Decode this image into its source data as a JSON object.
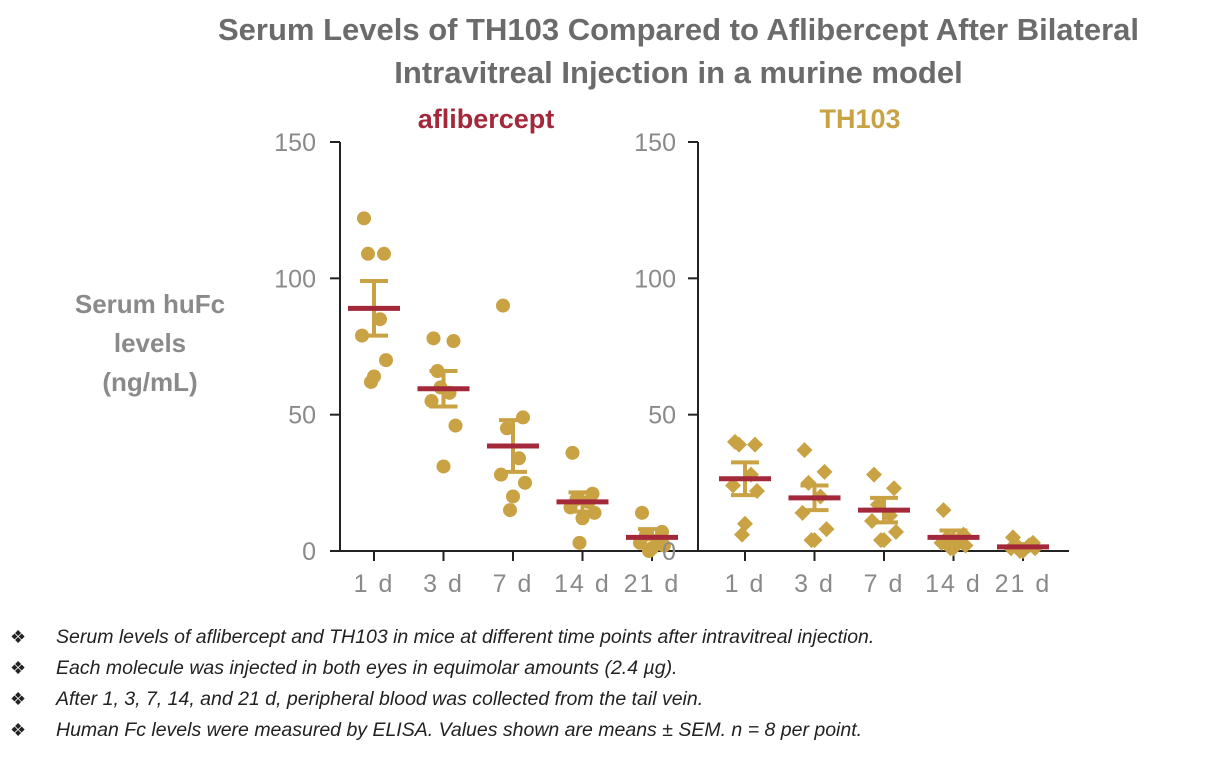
{
  "title": {
    "line1": "Serum Levels of TH103 Compared to Aflibercept After Bilateral",
    "line2": "Intravitreal Injection in a murine model"
  },
  "colors": {
    "aflibercept_label": "#a3283a",
    "th103_label": "#c9a244",
    "points": "#c9a244",
    "mean_bar": "#a3283a",
    "error_bar": "#c9a244",
    "axis": "#222222",
    "tick_text": "#8a8a8a",
    "title": "#6b6b6b"
  },
  "chart_data": [
    {
      "type": "scatter",
      "panel_title": "aflibercept",
      "marker": "circle",
      "ylabel": "Serum huFc levels (ng/mL)",
      "ylabel_lines": [
        "Serum huFc",
        "levels",
        "(ng/mL)"
      ],
      "ylim": [
        0,
        150
      ],
      "yticks": [
        "0",
        "50",
        "100",
        "150"
      ],
      "categories": [
        "1 d",
        "3 d",
        "7 d",
        "14 d",
        "21 d"
      ],
      "points": [
        [
          122,
          109,
          109,
          85,
          79,
          70,
          64,
          62
        ],
        [
          78,
          77,
          66,
          58,
          55,
          46,
          31,
          60
        ],
        [
          90,
          49,
          45,
          34,
          28,
          25,
          20,
          15
        ],
        [
          36,
          21,
          19,
          18,
          16,
          14,
          12,
          3
        ],
        [
          14,
          7,
          6,
          4,
          3,
          2,
          1,
          0
        ]
      ],
      "mean": [
        89,
        59.5,
        38.5,
        18,
        5
      ],
      "sem": [
        10,
        6.5,
        9.5,
        3.5,
        3
      ]
    },
    {
      "type": "scatter",
      "panel_title": "TH103",
      "marker": "diamond",
      "ylim": [
        0,
        150
      ],
      "yticks": [
        "0",
        "50",
        "100",
        "150"
      ],
      "categories": [
        "1 d",
        "3 d",
        "7 d",
        "14 d",
        "21 d"
      ],
      "points": [
        [
          40,
          39,
          39,
          28,
          24,
          22,
          10,
          6
        ],
        [
          37,
          29,
          25,
          20,
          14,
          8,
          4,
          4
        ],
        [
          28,
          23,
          17,
          13,
          11,
          7,
          4,
          4
        ],
        [
          15,
          6,
          5,
          4,
          3,
          2,
          1,
          1
        ],
        [
          5,
          3,
          2,
          2,
          1,
          1,
          0,
          0
        ]
      ],
      "mean": [
        26.5,
        19.5,
        15,
        5,
        1.5
      ],
      "sem": [
        6,
        4.5,
        4.5,
        2.5,
        1
      ]
    }
  ],
  "notes": [
    "Serum levels of aflibercept and TH103 in mice at different time points after intravitreal injection.",
    "Each molecule was injected in both eyes in equimolar amounts (2.4 µg).",
    "After 1, 3, 7, 14, and 21 d, peripheral blood was collected from the tail vein.",
    "Human Fc levels were measured by ELISA. Values shown are means ± SEM. n = 8 per point."
  ],
  "bullet_icon": "diamond-ornament-icon",
  "bullet_glyph": "❖"
}
